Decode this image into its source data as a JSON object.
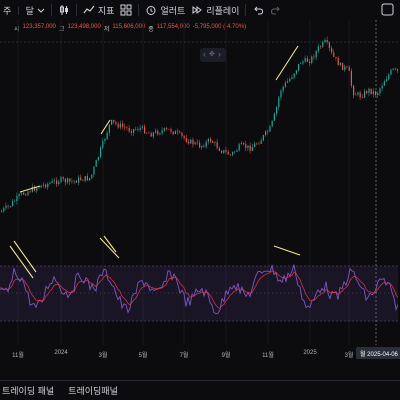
{
  "toolbar": {
    "timeframe_label": "주",
    "timeframe_unit_label": "달",
    "indicators_label": "지표",
    "alert_label": "얼러트",
    "replay_label": "리플레이"
  },
  "ohlc": {
    "open_label": "시",
    "open_value": "123,357,000",
    "high_label": "고",
    "high_value": "123,498,000",
    "low_label": "저",
    "low_value": "115,606,000",
    "close_label": "종",
    "close_value": "117,554,000",
    "change_value": "-5,795,000 (-4.70%)",
    "down_color": "#ef5350",
    "up_color": "#26a69a"
  },
  "time_axis": {
    "ticks": [
      "11월",
      "2024",
      "3월",
      "5월",
      "7월",
      "9월",
      "11월",
      "2025",
      "3월"
    ],
    "cursor_date": "월 2025-04-06"
  },
  "bottom_tabs": {
    "tab1": "트레이딩 패널",
    "tab2": "트레이딩패널"
  },
  "colors": {
    "background": "#0c0c0e",
    "trend_line": "#f0e68c",
    "rsi_line": "#7e57c2",
    "rsi_ma": "#f23645",
    "rsi_band": "#7e57c2"
  }
}
